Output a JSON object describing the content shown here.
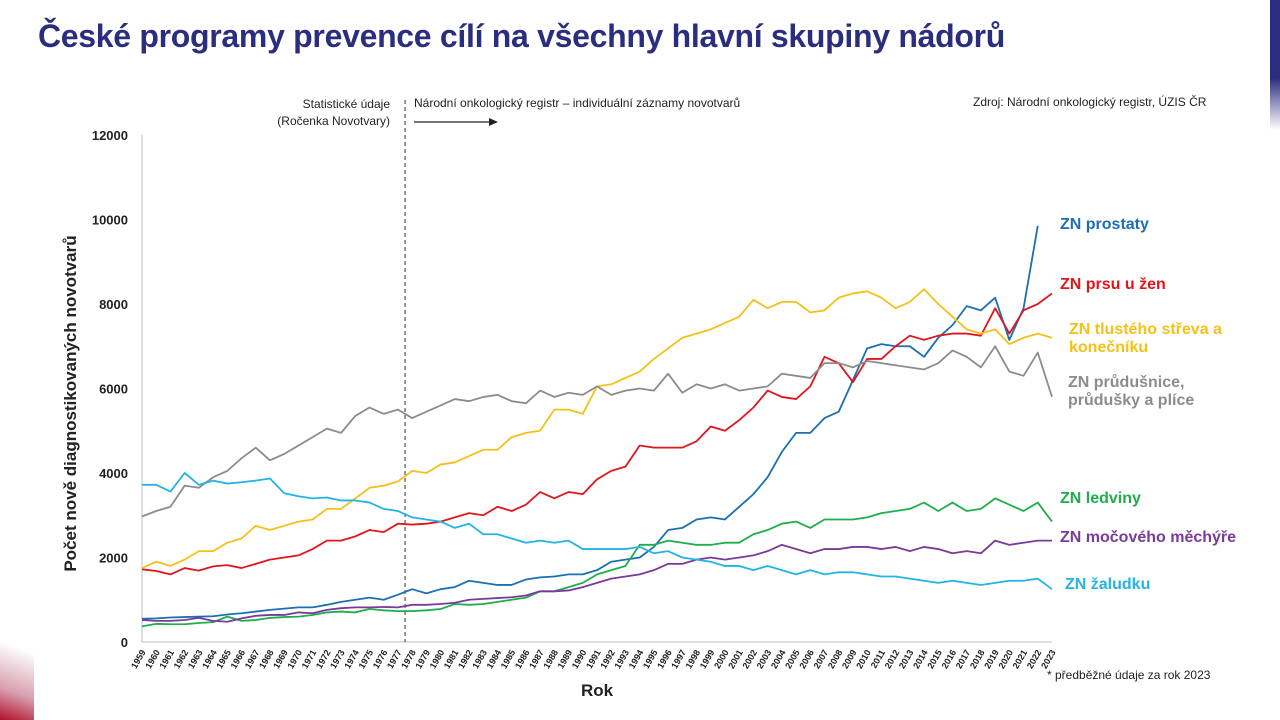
{
  "title": "České programy prevence cílí na všechny hlavní skupiny nádorů",
  "notes": {
    "left_line1": "Statistické údaje",
    "left_line2": "(Ročenka Novotvary)",
    "right": "Národní onkologický registr – individuální záznamy novotvarů"
  },
  "source": "Zdroj: Národní onkologický registr, ÚZIS ČR",
  "footnote": "* předběžné údaje za rok 2023",
  "colors": {
    "title": "#2b2d7e",
    "prostata": "#1b6fb3",
    "prs": "#e0161b",
    "strevo": "#f5c119",
    "plice": "#8c8c8c",
    "ledviny": "#1fae4b",
    "mechyr": "#7a3a9a",
    "zaludek": "#23b3e6"
  },
  "chart_data": {
    "type": "line",
    "xlabel": "Rok",
    "ylabel": "Počet nově diagnostikovaných novotvarů",
    "ylim": [
      0,
      12000
    ],
    "yticks": [
      0,
      2000,
      4000,
      6000,
      8000,
      10000,
      12000
    ],
    "divider_after_year": 1977,
    "grid": false,
    "x": [
      "1959",
      "1960",
      "1961",
      "1962",
      "1963",
      "1964",
      "1965",
      "1966",
      "1967",
      "1968",
      "1969",
      "1970",
      "1971",
      "1972",
      "1973",
      "1974",
      "1975",
      "1976",
      "1977",
      "1978",
      "1979",
      "1980",
      "1981",
      "1982",
      "1983",
      "1984",
      "1985",
      "1986",
      "1987",
      "1988",
      "1989",
      "1990",
      "1991",
      "1992",
      "1993",
      "1994",
      "1995",
      "1996",
      "1997",
      "1998",
      "1999",
      "2000",
      "2001",
      "2002",
      "2003",
      "2004",
      "2005",
      "2006",
      "2007",
      "2008",
      "2009",
      "2010",
      "2011",
      "2012",
      "2013",
      "2014",
      "2015",
      "2016",
      "2017",
      "2018",
      "2019",
      "2020",
      "2021",
      "2022",
      "2023"
    ],
    "series": [
      {
        "key": "prostata",
        "name": "ZN prostaty",
        "color": "#1b6fb3",
        "values": [
          550,
          560,
          580,
          590,
          600,
          610,
          650,
          680,
          720,
          760,
          790,
          820,
          820,
          880,
          950,
          1000,
          1050,
          1000,
          1120,
          1250,
          1150,
          1250,
          1300,
          1450,
          1400,
          1350,
          1350,
          1480,
          1530,
          1550,
          1600,
          1600,
          1700,
          1900,
          1950,
          2000,
          2250,
          2650,
          2700,
          2900,
          2950,
          2900,
          3200,
          3500,
          3900,
          4500,
          4950,
          4950,
          5300,
          5450,
          6200,
          6950,
          7050,
          7000,
          7000,
          6750,
          7200,
          7500,
          7950,
          7850,
          8150,
          7150,
          7900,
          9850,
          null
        ]
      },
      {
        "key": "prs",
        "name": "ZN prsu u žen",
        "color": "#e0161b",
        "values": [
          1720,
          1680,
          1600,
          1750,
          1690,
          1790,
          1820,
          1750,
          1850,
          1950,
          2000,
          2050,
          2200,
          2400,
          2400,
          2500,
          2650,
          2600,
          2800,
          2780,
          2800,
          2850,
          2950,
          3050,
          3000,
          3200,
          3100,
          3250,
          3550,
          3400,
          3550,
          3500,
          3850,
          4050,
          4150,
          4650,
          4600,
          4600,
          4600,
          4750,
          5100,
          5000,
          5250,
          5550,
          5950,
          5800,
          5750,
          6050,
          6750,
          6600,
          6150,
          6700,
          6700,
          7000,
          7250,
          7150,
          7250,
          7300,
          7300,
          7250,
          7900,
          7300,
          7850,
          8000,
          8250
        ]
      },
      {
        "key": "strevo",
        "name": "ZN tlustého střeva a konečníku",
        "color": "#f5c119",
        "values": [
          1750,
          1900,
          1800,
          1950,
          2150,
          2150,
          2350,
          2450,
          2750,
          2650,
          2750,
          2850,
          2900,
          3150,
          3150,
          3400,
          3650,
          3700,
          3800,
          4050,
          4000,
          4200,
          4250,
          4400,
          4550,
          4550,
          4850,
          4950,
          5000,
          5500,
          5500,
          5400,
          6050,
          6100,
          6250,
          6400,
          6700,
          6950,
          7200,
          7300,
          7400,
          7550,
          7700,
          8100,
          7900,
          8050,
          8050,
          7800,
          7850,
          8150,
          8250,
          8300,
          8150,
          7900,
          8050,
          8350,
          8000,
          7700,
          7400,
          7300,
          7400,
          7050,
          7200,
          7300,
          7200
        ]
      },
      {
        "key": "plice",
        "name": "ZN průdušnice, průdušky a plíce",
        "color": "#8c8c8c",
        "values": [
          2970,
          3100,
          3200,
          3700,
          3650,
          3900,
          4050,
          4350,
          4600,
          4300,
          4450,
          4650,
          4850,
          5050,
          4950,
          5350,
          5550,
          5400,
          5500,
          5300,
          5450,
          5600,
          5750,
          5700,
          5800,
          5850,
          5700,
          5650,
          5950,
          5800,
          5900,
          5850,
          6050,
          5850,
          5950,
          6000,
          5950,
          6350,
          5900,
          6100,
          6000,
          6100,
          5950,
          6000,
          6050,
          6350,
          6300,
          6250,
          6600,
          6600,
          6500,
          6650,
          6600,
          6550,
          6500,
          6450,
          6600,
          6900,
          6750,
          6500,
          7000,
          6400,
          6300,
          6850,
          5800
        ]
      },
      {
        "key": "ledviny",
        "name": "ZN ledviny",
        "color": "#1fae4b",
        "values": [
          370,
          430,
          420,
          420,
          450,
          470,
          600,
          500,
          520,
          570,
          590,
          600,
          640,
          700,
          720,
          700,
          780,
          750,
          730,
          730,
          750,
          780,
          900,
          880,
          900,
          950,
          1000,
          1050,
          1200,
          1200,
          1300,
          1400,
          1600,
          1700,
          1800,
          2300,
          2300,
          2400,
          2350,
          2300,
          2300,
          2350,
          2350,
          2550,
          2650,
          2800,
          2850,
          2700,
          2900,
          2900,
          2900,
          2950,
          3050,
          3100,
          3150,
          3300,
          3100,
          3300,
          3100,
          3150,
          3400,
          3250,
          3100,
          3300,
          2850
        ]
      },
      {
        "key": "mechyr",
        "name": "ZN močového měchýře",
        "color": "#7a3a9a",
        "values": [
          520,
          500,
          500,
          520,
          570,
          500,
          480,
          560,
          620,
          640,
          640,
          700,
          680,
          760,
          800,
          820,
          820,
          830,
          820,
          880,
          880,
          900,
          930,
          1000,
          1020,
          1040,
          1060,
          1100,
          1200,
          1200,
          1220,
          1300,
          1400,
          1500,
          1550,
          1600,
          1700,
          1850,
          1850,
          1950,
          2000,
          1950,
          2000,
          2050,
          2150,
          2300,
          2200,
          2100,
          2200,
          2200,
          2250,
          2250,
          2200,
          2250,
          2150,
          2250,
          2200,
          2100,
          2150,
          2100,
          2400,
          2300,
          2350,
          2400,
          2400
        ]
      },
      {
        "key": "zaludek",
        "name": "ZN žaludku",
        "color": "#23b3e6",
        "values": [
          3720,
          3720,
          3560,
          4000,
          3720,
          3820,
          3750,
          3780,
          3820,
          3870,
          3520,
          3450,
          3400,
          3420,
          3350,
          3350,
          3300,
          3150,
          3100,
          2950,
          2900,
          2850,
          2700,
          2800,
          2550,
          2550,
          2450,
          2350,
          2400,
          2350,
          2400,
          2200,
          2200,
          2200,
          2200,
          2250,
          2100,
          2150,
          2000,
          1950,
          1900,
          1800,
          1800,
          1700,
          1800,
          1700,
          1600,
          1700,
          1600,
          1650,
          1650,
          1600,
          1550,
          1550,
          1500,
          1450,
          1400,
          1450,
          1400,
          1350,
          1400,
          1450,
          1450,
          1500,
          1250
        ]
      }
    ]
  }
}
